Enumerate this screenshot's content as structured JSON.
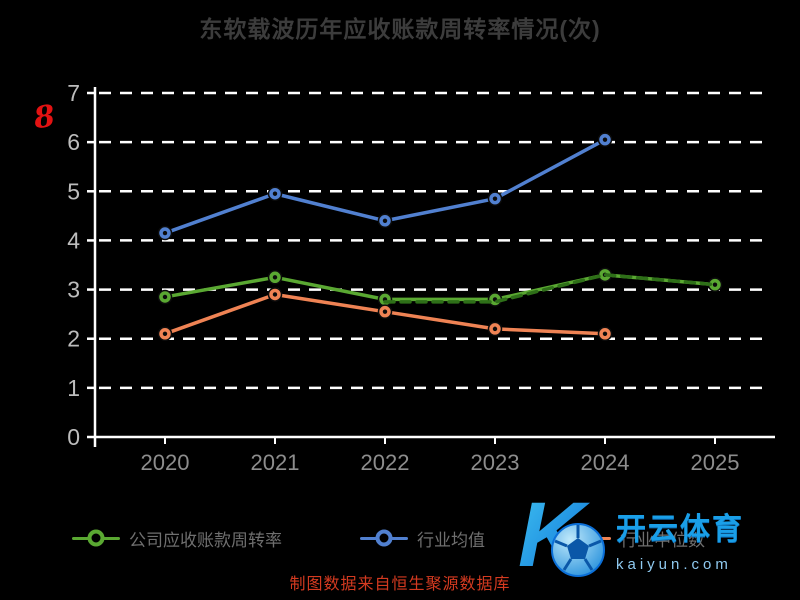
{
  "title": "东软载波历年应收账款周转率情况(次)",
  "red_mark": "8",
  "footer": "制图数据来自恒生聚源数据库",
  "watermark": {
    "brand": "开云体育",
    "domain": "kaiyun.com"
  },
  "colors": {
    "background": "#000000",
    "grid": "#ffffff",
    "title": "#3c3c3c",
    "y_tick_label": "#bdbdbd",
    "x_tick_label": "#8d8d8d",
    "legend_label": "#6f6f6f",
    "footer": "#d43a20",
    "watermark_blue": "#1a9fe8",
    "red_mark": "#e31212"
  },
  "legend": [
    {
      "label": "公司应收账款周转率",
      "color": "#5aa832"
    },
    {
      "label": "行业均值",
      "color": "#5180d0"
    },
    {
      "label": "行业中位数",
      "color": "#ef8354"
    }
  ],
  "chart_data": {
    "type": "line",
    "title": "东软载波历年应收账款周转率情况(次)",
    "categories": [
      "2020",
      "2021",
      "2022",
      "2023",
      "2024",
      "2025"
    ],
    "xlabel": "",
    "ylabel": "",
    "ylim": [
      0,
      7
    ],
    "y_ticks": [
      0,
      1,
      2,
      3,
      4,
      5,
      6,
      7
    ],
    "grid": "horizontal-dashed-white",
    "legend_position": "bottom",
    "series": [
      {
        "name": "公司应收账款周转率",
        "color": "#5aa832",
        "style": "solid",
        "markers": true,
        "values": [
          2.85,
          3.25,
          2.8,
          2.8,
          3.3,
          3.1
        ]
      },
      {
        "name": "行业均值",
        "color": "#5180d0",
        "style": "solid",
        "markers": true,
        "values": [
          4.15,
          4.95,
          4.4,
          4.85,
          6.05,
          null
        ]
      },
      {
        "name": "行业中位数",
        "color": "#ef8354",
        "style": "solid",
        "markers": true,
        "values": [
          2.1,
          2.9,
          2.55,
          2.2,
          2.1,
          null
        ]
      },
      {
        "name": "公司线重叠虚线段(深绿)",
        "color": "#2e6f18",
        "style": "dashed",
        "markers": false,
        "show_in_legend": false,
        "values": [
          null,
          null,
          2.75,
          2.75,
          3.3,
          3.1
        ]
      }
    ]
  }
}
